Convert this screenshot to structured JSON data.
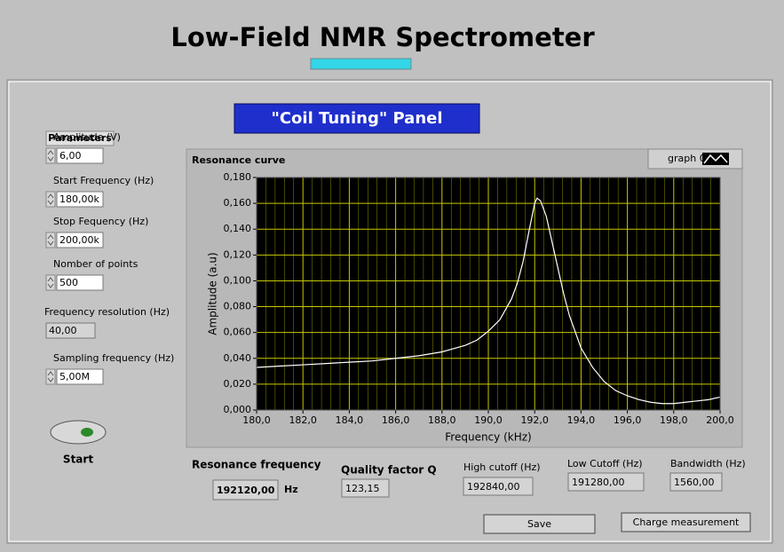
{
  "title": "Low-Field NMR Spectrometer",
  "panel_title": "\"Coil Tuning\" Panel",
  "parameters": {
    "heading": "Parameters",
    "controls": [
      {
        "label": "Amplitude (V)",
        "value": "6,00",
        "control": true
      },
      {
        "label": "Start Frequency  (Hz)",
        "value": "180,00k",
        "control": true
      },
      {
        "label": "Stop Fequency  (Hz)",
        "value": "200,00k",
        "control": true
      },
      {
        "label": "Nomber of points",
        "value": "500",
        "control": true
      },
      {
        "label": "Frequency resolution (Hz)",
        "value": "40,00",
        "control": false
      },
      {
        "label": "Sampling frequency  (Hz)",
        "value": "5,00M",
        "control": true
      }
    ]
  },
  "start_button": "Start",
  "chart_data": {
    "type": "line",
    "title": "Resonance curve",
    "x_label": "Frequency (kHz)",
    "y_label": "Amplitude (a.u)",
    "x": [
      180,
      181,
      182,
      183,
      184,
      185,
      186,
      187,
      188,
      189,
      189.5,
      190,
      190.5,
      191,
      191.25,
      191.5,
      191.75,
      192,
      192.1,
      192.25,
      192.5,
      192.75,
      193,
      193.25,
      193.5,
      194,
      194.5,
      195,
      195.5,
      196,
      196.5,
      197,
      197.5,
      198,
      198.5,
      199,
      199.5,
      200
    ],
    "series": [
      {
        "name": "graph 0",
        "color": "#ffffff",
        "values": [
          0.033,
          0.034,
          0.035,
          0.036,
          0.037,
          0.038,
          0.04,
          0.042,
          0.045,
          0.05,
          0.054,
          0.061,
          0.07,
          0.086,
          0.098,
          0.115,
          0.138,
          0.16,
          0.164,
          0.162,
          0.15,
          0.13,
          0.11,
          0.09,
          0.073,
          0.048,
          0.033,
          0.022,
          0.015,
          0.011,
          0.008,
          0.006,
          0.005,
          0.005,
          0.006,
          0.007,
          0.008,
          0.01
        ]
      }
    ],
    "xlim": [
      180,
      200
    ],
    "ylim": [
      0,
      0.18
    ],
    "xticks": [
      {
        "value": 180,
        "label": "180,0"
      },
      {
        "value": 182,
        "label": "182,0"
      },
      {
        "value": 184,
        "label": "184,0"
      },
      {
        "value": 186,
        "label": "186,0"
      },
      {
        "value": 188,
        "label": "188,0"
      },
      {
        "value": 190,
        "label": "190,0"
      },
      {
        "value": 192,
        "label": "192,0"
      },
      {
        "value": 194,
        "label": "194,0"
      },
      {
        "value": 196,
        "label": "196,0"
      },
      {
        "value": 198,
        "label": "198,0"
      },
      {
        "value": 200,
        "label": "200,0"
      }
    ],
    "yticks": [
      {
        "value": 0,
        "label": "0,000"
      },
      {
        "value": 0.02,
        "label": "0,020"
      },
      {
        "value": 0.04,
        "label": "0,040"
      },
      {
        "value": 0.06,
        "label": "0,060"
      },
      {
        "value": 0.08,
        "label": "0,080"
      },
      {
        "value": 0.1,
        "label": "0,100"
      },
      {
        "value": 0.12,
        "label": "0,120"
      },
      {
        "value": 0.14,
        "label": "0,140"
      },
      {
        "value": 0.16,
        "label": "0,160"
      },
      {
        "value": 0.18,
        "label": "0,180"
      }
    ],
    "grid": true,
    "grid_color": "#c8c800",
    "plot_background": "#000000"
  },
  "results": [
    {
      "label": "Resonance frequency",
      "value": "192120,00"
    },
    {
      "label": "Quality factor Q",
      "value": "123,15"
    },
    {
      "label": "High cutoff  (Hz)",
      "value": "192840,00"
    },
    {
      "label": "Low Cutoff (Hz)",
      "value": "191280,00"
    },
    {
      "label": "Bandwidth  (Hz)",
      "value": "1560,00"
    }
  ],
  "unit": "Hz",
  "buttons": [
    "Save",
    "Charge measurement"
  ]
}
